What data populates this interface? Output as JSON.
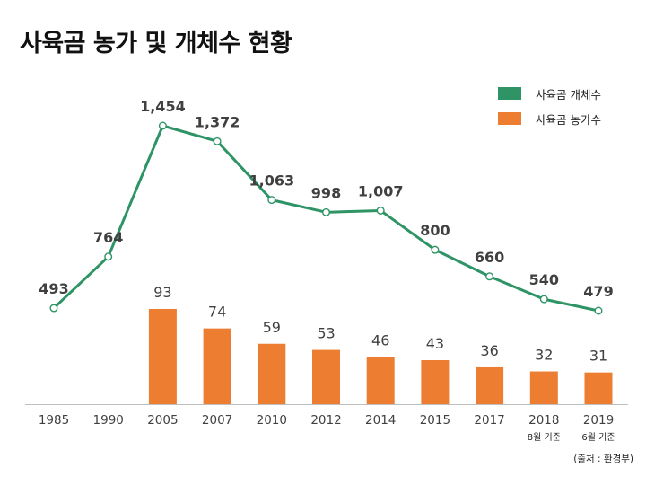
{
  "chart_data": {
    "type": "bar",
    "title": "사육곰 농가 및 개체수 현황",
    "categories": [
      "1985",
      "1990",
      "2005",
      "2007",
      "2010",
      "2012",
      "2014",
      "2015",
      "2017",
      "2018",
      "2019"
    ],
    "category_notes": [
      "",
      "",
      "",
      "",
      "",
      "",
      "",
      "",
      "",
      "8월 기준",
      "6월 기준"
    ],
    "series": [
      {
        "name": "사육곰 개체수",
        "type": "line",
        "values": [
          493,
          764,
          1454,
          1372,
          1063,
          998,
          1007,
          800,
          660,
          540,
          479
        ],
        "labels": [
          "493",
          "764",
          "1,454",
          "1,372",
          "1,063",
          "998",
          "1,007",
          "800",
          "660",
          "540",
          "479"
        ],
        "color": "#2e9466"
      },
      {
        "name": "사육곰 농가수",
        "type": "bar",
        "values": [
          null,
          null,
          93,
          74,
          59,
          53,
          46,
          43,
          36,
          32,
          31
        ],
        "labels": [
          "",
          "",
          "93",
          "74",
          "59",
          "53",
          "46",
          "43",
          "36",
          "32",
          "31"
        ],
        "color": "#ed7d31"
      }
    ],
    "legend_position": "top-right",
    "grid": false,
    "source_note": "(출처 : 환경부)"
  }
}
